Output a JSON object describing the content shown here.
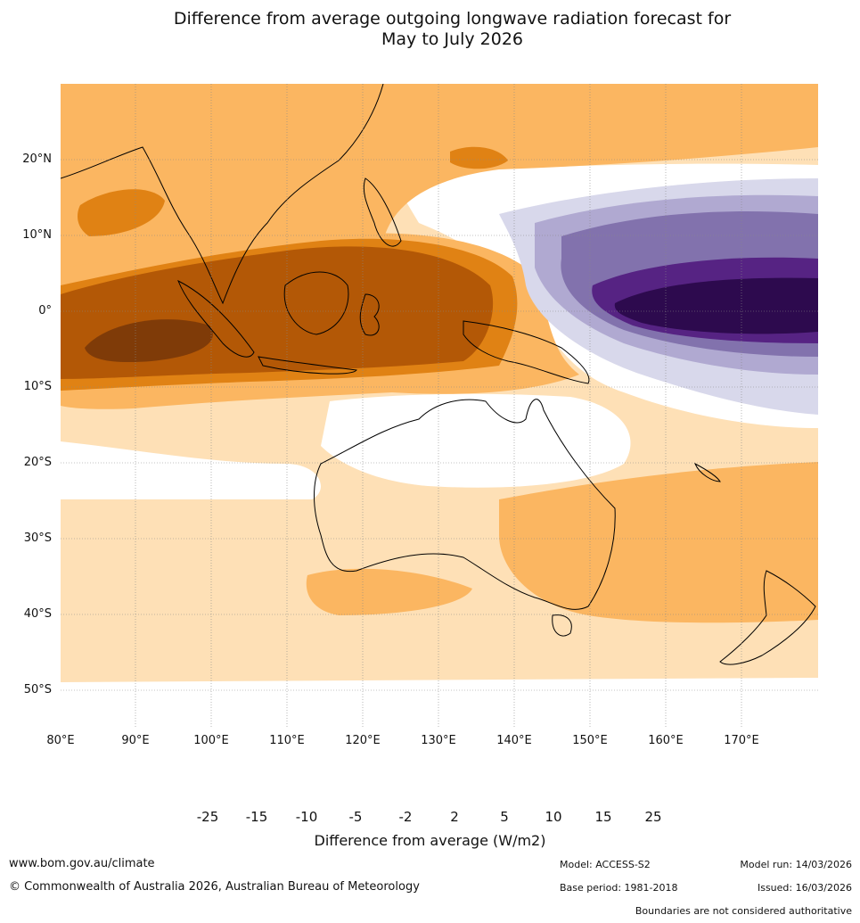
{
  "title_line1": "Difference from average outgoing longwave radiation forecast for",
  "title_line2": "May to July 2026",
  "map": {
    "region": "Maritime Continent and Australia",
    "lon_range_deg": [
      80,
      180
    ],
    "lat_range_deg": [
      -55,
      30
    ],
    "lat_labels": [
      "20°N",
      "10°N",
      "0°",
      "10°S",
      "20°S",
      "30°S",
      "40°S",
      "50°S"
    ],
    "lon_labels": [
      "80°E",
      "90°E",
      "100°E",
      "110°E",
      "120°E",
      "130°E",
      "140°E",
      "150°E",
      "160°E",
      "170°E"
    ]
  },
  "colorbar": {
    "title": "Difference from average (W/m2)",
    "ticks": [
      "-25",
      "-15",
      "-10",
      "-5",
      "-2",
      "2",
      "5",
      "10",
      "15",
      "25"
    ],
    "colors": [
      "#2d0a4e",
      "#562383",
      "#8272ad",
      "#b0a9d1",
      "#d8d8eb",
      "#ffffff",
      "#fee0b6",
      "#fbb661",
      "#e08214",
      "#b35806",
      "#7f3b08"
    ]
  },
  "footer": {
    "website": "www.bom.gov.au/climate",
    "copyright": "© Commonwealth of Australia 2026, Australian Bureau of Meteorology",
    "model": "Model: ACCESS-S2",
    "base_period": "Base period: 1981-2018",
    "model_run": "Model run: 14/03/2026",
    "issued": "Issued: 16/03/2026",
    "disclaimer": "Boundaries are not considered authoritative"
  }
}
